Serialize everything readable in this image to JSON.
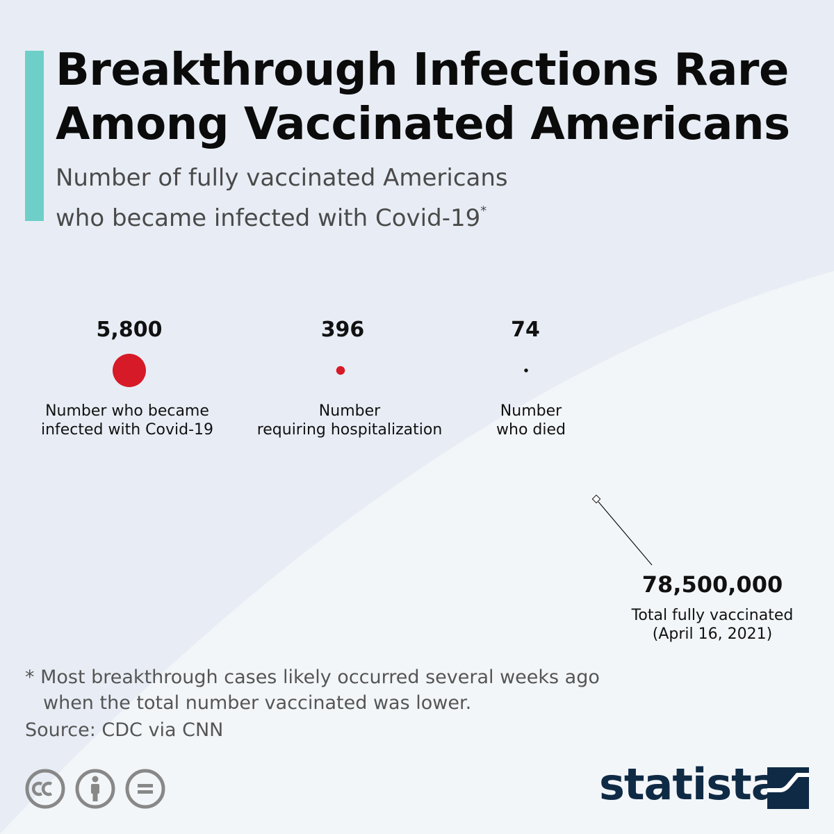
{
  "title": "Breakthrough Infections Rare Among Vaccinated Americans",
  "subtitle": {
    "line1": "Number of fully vaccinated Americans",
    "line2": "who became infected with Covid-19",
    "marker": "*"
  },
  "colors": {
    "background_outer": "#e8edf5",
    "background_inner": "#f3f6f9",
    "accent": "#6ecfc8",
    "infected": "#d71a28",
    "hospitalized": "#d71a28",
    "died": "#111111",
    "brand": "#0f2a45",
    "icon_gray": "#888888"
  },
  "chart_data": {
    "type": "bubble",
    "categories": [
      {
        "value": 5800,
        "value_label": "5,800",
        "label_line1": "Number who became",
        "label_line2": "infected with Covid-19"
      },
      {
        "value": 396,
        "value_label": "396",
        "label_line1": "Number",
        "label_line2": "requiring hospitalization"
      },
      {
        "value": 74,
        "value_label": "74",
        "label_line1": "Number",
        "label_line2": "who died"
      }
    ],
    "total": {
      "value": 78500000,
      "value_label": "78,500,000",
      "label_line1": "Total fully vaccinated",
      "label_line2": "(April 16, 2021)"
    }
  },
  "footnote": {
    "line1": "* Most breakthrough cases likely occurred several weeks ago",
    "line2": "when the total number vaccinated was lower."
  },
  "source": "Source: CDC via CNN",
  "brand": {
    "name": "statista"
  },
  "license_icons": [
    "creative-commons-icon",
    "attribution-icon",
    "no-derivatives-icon"
  ]
}
